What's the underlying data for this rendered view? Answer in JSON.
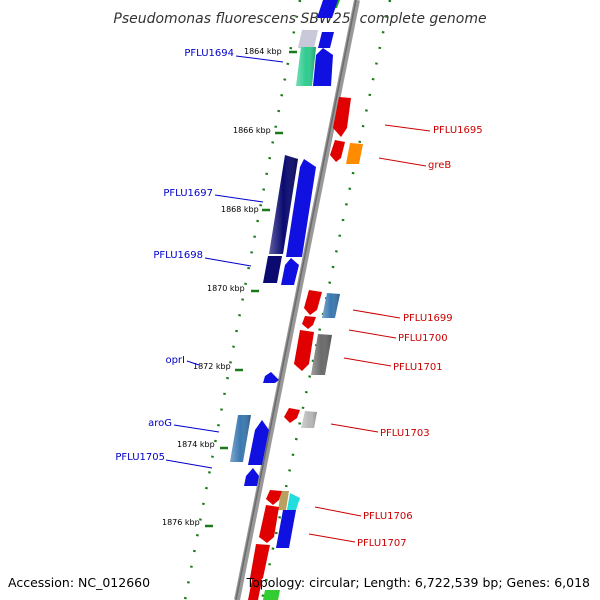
{
  "title": "Pseudomonas fluorescens SBW25, complete genome",
  "accession": "Accession: NC_012660",
  "topology": "Topology: circular; Length: 6,722,539 bp; Genes: 6,018",
  "ticks": [
    "1864 kbp",
    "1866 kbp",
    "1868 kbp",
    "1870 kbp",
    "1872 kbp",
    "1874 kbp",
    "1876 kbp"
  ],
  "colors": {
    "backbone": "#888888",
    "ticks": "#1a7a1a",
    "forward_label": "#0000cc",
    "reverse_label": "#cc0000"
  },
  "forward_genes": [
    {
      "label": "PFLU1694",
      "color": "#2ecc8f"
    },
    {
      "label": "PFLU1697",
      "color": "#0a0a70"
    },
    {
      "label": "PFLU1698",
      "color": "#0a0a70"
    },
    {
      "label": "oprI",
      "color": "#1010e0"
    },
    {
      "label": "aroG",
      "color": "#3a78b0"
    },
    {
      "label": "PFLU1705",
      "color": "#1010e0"
    }
  ],
  "reverse_genes": [
    {
      "label": "PFLU1695",
      "color": "#e00000"
    },
    {
      "label": "greB",
      "color": "#ff8c00"
    },
    {
      "label": "PFLU1699",
      "color": "#e00000"
    },
    {
      "label": "PFLU1700",
      "color": "#e00000"
    },
    {
      "label": "PFLU1701",
      "color": "#e00000"
    },
    {
      "label": "PFLU1703",
      "color": "#e00000"
    },
    {
      "label": "PFLU1706",
      "color": "#e00000"
    },
    {
      "label": "PFLU1707",
      "color": "#e00000"
    }
  ]
}
